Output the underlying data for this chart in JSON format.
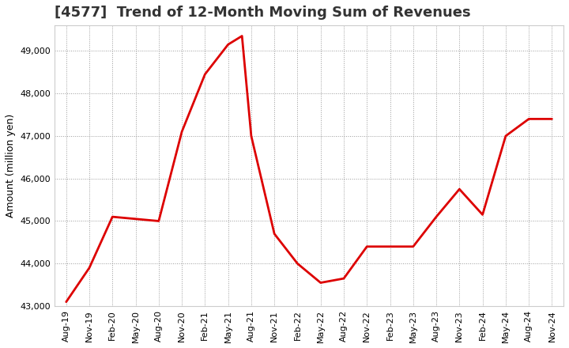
{
  "title": "[4577]  Trend of 12-Month Moving Sum of Revenues",
  "ylabel": "Amount (million yen)",
  "line_color": "#dd0000",
  "background_color": "#ffffff",
  "plot_bg_color": "#ffffff",
  "grid_color": "#999999",
  "ylim": [
    43000,
    49600
  ],
  "yticks": [
    43000,
    44000,
    45000,
    46000,
    47000,
    48000,
    49000
  ],
  "x_labels": [
    "Aug-19",
    "Nov-19",
    "Feb-20",
    "May-20",
    "Aug-20",
    "Nov-20",
    "Feb-21",
    "May-21",
    "Aug-21",
    "Nov-21",
    "Feb-22",
    "May-22",
    "Aug-22",
    "Nov-22",
    "Feb-23",
    "May-23",
    "Aug-23",
    "Nov-23",
    "Feb-24",
    "May-24",
    "Aug-24",
    "Nov-24"
  ],
  "x_fine": [
    0,
    1,
    2,
    3,
    4,
    5,
    6,
    7,
    7.6,
    8,
    9,
    10,
    11,
    12,
    13,
    14,
    15,
    16,
    17,
    18,
    19,
    20,
    21
  ],
  "y_fine": [
    43100,
    43900,
    45100,
    45050,
    45000,
    47100,
    48450,
    49150,
    49350,
    47000,
    44700,
    44000,
    43550,
    43650,
    44400,
    44400,
    44400,
    45100,
    45750,
    45150,
    47000,
    47400,
    47400
  ],
  "title_fontsize": 13,
  "ylabel_fontsize": 9,
  "tick_fontsize": 8
}
